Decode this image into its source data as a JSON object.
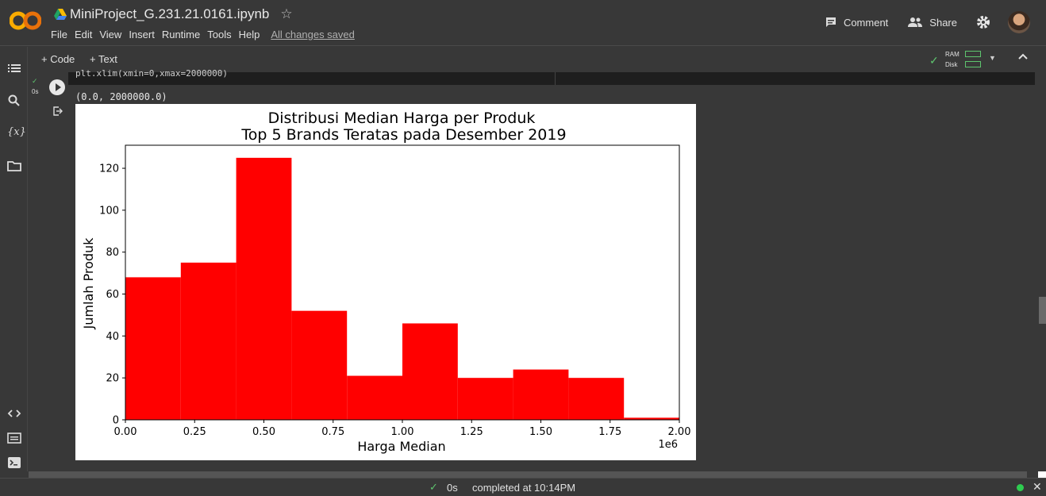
{
  "header": {
    "notebook_title": "MiniProject_G.231.21.0161.ipynb",
    "save_status": "All changes saved",
    "comment_label": "Comment",
    "share_label": "Share"
  },
  "menu": {
    "items": [
      "File",
      "Edit",
      "View",
      "Insert",
      "Runtime",
      "Tools",
      "Help"
    ]
  },
  "toolbar": {
    "add_code_label": "+ Code",
    "add_text_label": "+ Text",
    "ram_label": "RAM",
    "disk_label": "Disk"
  },
  "rail": {
    "variables_label": "{x}"
  },
  "cell": {
    "code_line": "plt.xlim(xmin=0,xmax=2000000)",
    "exec_time": "0s",
    "output_text": "(0.0, 2000000.0)"
  },
  "status": {
    "time": "0s",
    "completed": "completed at 10:14PM"
  },
  "colors": {
    "bar": "#ff0000",
    "success": "#5ec46e",
    "background": "#383838"
  },
  "chart_data": {
    "type": "bar",
    "title": "Distribusi Median Harga per Produk\nTop 5 Brands Teratas pada Desember 2019",
    "title_lines": [
      "Distribusi Median Harga per Produk",
      "Top 5 Brands Teratas pada Desember 2019"
    ],
    "xlabel": "Harga Median",
    "ylabel": "Jumlah Produk",
    "x_scale_note": "1e6",
    "xlim": [
      0,
      2000000
    ],
    "ylim": [
      0,
      131
    ],
    "x_ticks": [
      0,
      250000,
      500000,
      750000,
      1000000,
      1250000,
      1500000,
      1750000,
      2000000
    ],
    "x_tick_labels": [
      "0.00",
      "0.25",
      "0.50",
      "0.75",
      "1.00",
      "1.25",
      "1.50",
      "1.75",
      "2.00"
    ],
    "y_ticks": [
      0,
      20,
      40,
      60,
      80,
      100,
      120
    ],
    "y_tick_labels": [
      "0",
      "20",
      "40",
      "60",
      "80",
      "100",
      "120"
    ],
    "bins": [
      {
        "start": 0,
        "end": 200000,
        "value": 68
      },
      {
        "start": 200000,
        "end": 400000,
        "value": 75
      },
      {
        "start": 400000,
        "end": 600000,
        "value": 125
      },
      {
        "start": 600000,
        "end": 800000,
        "value": 52
      },
      {
        "start": 800000,
        "end": 1000000,
        "value": 21
      },
      {
        "start": 1000000,
        "end": 1200000,
        "value": 46
      },
      {
        "start": 1200000,
        "end": 1400000,
        "value": 20
      },
      {
        "start": 1400000,
        "end": 1600000,
        "value": 24
      },
      {
        "start": 1600000,
        "end": 1800000,
        "value": 20
      },
      {
        "start": 1800000,
        "end": 2000000,
        "value": 1
      }
    ],
    "color": "#ff0000",
    "grid": false,
    "legend": false
  }
}
